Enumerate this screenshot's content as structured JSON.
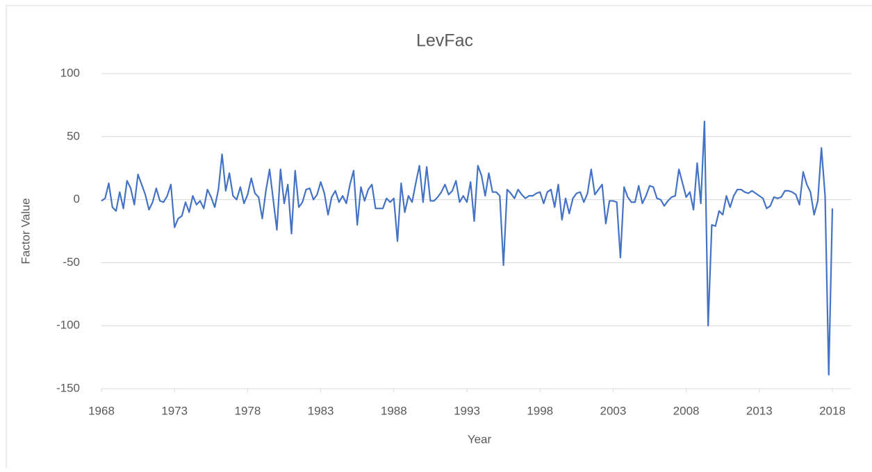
{
  "chart_data": {
    "type": "line",
    "title": "LevFac",
    "xlabel": "Year",
    "ylabel": "Factor Value",
    "x": [
      1968,
      1968.25,
      1968.5,
      1968.75,
      1969,
      1969.25,
      1969.5,
      1969.75,
      1970,
      1970.25,
      1970.5,
      1970.75,
      1971,
      1971.25,
      1971.5,
      1971.75,
      1972,
      1972.25,
      1972.5,
      1972.75,
      1973,
      1973.25,
      1973.5,
      1973.75,
      1974,
      1974.25,
      1974.5,
      1974.75,
      1975,
      1975.25,
      1975.5,
      1975.75,
      1976,
      1976.25,
      1976.5,
      1976.75,
      1977,
      1977.25,
      1977.5,
      1977.75,
      1978,
      1978.25,
      1978.5,
      1978.75,
      1979,
      1979.25,
      1979.5,
      1979.75,
      1980,
      1980.25,
      1980.5,
      1980.75,
      1981,
      1981.25,
      1981.5,
      1981.75,
      1982,
      1982.25,
      1982.5,
      1982.75,
      1983,
      1983.25,
      1983.5,
      1983.75,
      1984,
      1984.25,
      1984.5,
      1984.75,
      1985,
      1985.25,
      1985.5,
      1985.75,
      1986,
      1986.25,
      1986.5,
      1986.75,
      1987,
      1987.25,
      1987.5,
      1987.75,
      1988,
      1988.25,
      1988.5,
      1988.75,
      1989,
      1989.25,
      1989.5,
      1989.75,
      1990,
      1990.25,
      1990.5,
      1990.75,
      1991,
      1991.25,
      1991.5,
      1991.75,
      1992,
      1992.25,
      1992.5,
      1992.75,
      1993,
      1993.25,
      1993.5,
      1993.75,
      1994,
      1994.25,
      1994.5,
      1994.75,
      1995,
      1995.25,
      1995.5,
      1995.75,
      1996,
      1996.25,
      1996.5,
      1996.75,
      1997,
      1997.25,
      1997.5,
      1997.75,
      1998,
      1998.25,
      1998.5,
      1998.75,
      1999,
      1999.25,
      1999.5,
      1999.75,
      2000,
      2000.25,
      2000.5,
      2000.75,
      2001,
      2001.25,
      2001.5,
      2001.75,
      2002,
      2002.25,
      2002.5,
      2002.75,
      2003,
      2003.25,
      2003.5,
      2003.75,
      2004,
      2004.25,
      2004.5,
      2004.75,
      2005,
      2005.25,
      2005.5,
      2005.75,
      2006,
      2006.25,
      2006.5,
      2006.75,
      2007,
      2007.25,
      2007.5,
      2007.75,
      2008,
      2008.25,
      2008.5,
      2008.75,
      2009,
      2009.25,
      2009.5,
      2009.75,
      2010,
      2010.25,
      2010.5,
      2010.75,
      2011,
      2011.25,
      2011.5,
      2011.75,
      2012,
      2012.25,
      2012.5,
      2012.75,
      2013,
      2013.25,
      2013.5,
      2013.75,
      2014,
      2014.25,
      2014.5,
      2014.75,
      2015,
      2015.25,
      2015.5,
      2015.75,
      2016,
      2016.25,
      2016.5,
      2016.75,
      2017,
      2017.25,
      2017.5,
      2017.75,
      2018
    ],
    "series": [
      {
        "name": "LevFac",
        "color": "#4472c4",
        "values": [
          -1,
          1,
          13,
          -6,
          -9,
          6,
          -7,
          15,
          9,
          -4,
          20,
          12,
          4,
          -8,
          -2,
          9,
          -1,
          -2,
          3,
          12,
          -22,
          -15,
          -13,
          -2,
          -10,
          3,
          -4,
          -1,
          -7,
          8,
          2,
          -6,
          8,
          36,
          7,
          21,
          3,
          0,
          10,
          -3,
          4,
          17,
          5,
          2,
          -15,
          7,
          24,
          0,
          -24,
          24,
          -3,
          12,
          -27,
          23,
          -6,
          -2,
          8,
          9,
          0,
          4,
          14,
          5,
          -12,
          2,
          7,
          -2,
          3,
          -3,
          12,
          23,
          -20,
          10,
          -1,
          8,
          12,
          -7,
          -7,
          -7,
          1,
          -2,
          1,
          -33,
          13,
          -10,
          3,
          -2,
          13,
          27,
          -2,
          26,
          -1,
          -1,
          2,
          6,
          12,
          4,
          7,
          15,
          -2,
          3,
          -2,
          14,
          -17,
          27,
          19,
          3,
          21,
          6,
          6,
          3,
          -52,
          8,
          5,
          1,
          8,
          4,
          1,
          3,
          3,
          5,
          6,
          -3,
          6,
          8,
          -6,
          12,
          -16,
          1,
          -11,
          1,
          5,
          6,
          -2,
          5,
          24,
          4,
          8,
          12,
          -19,
          -1,
          -1,
          -2,
          -46,
          10,
          2,
          -2,
          -2,
          11,
          -3,
          3,
          11,
          10,
          1,
          0,
          -5,
          -1,
          2,
          3,
          24,
          13,
          2,
          6,
          -8,
          29,
          -3,
          62,
          -100,
          -20,
          -21,
          -9,
          -12,
          3,
          -6,
          3,
          8,
          8,
          6,
          5,
          7,
          5,
          3,
          1,
          -7,
          -5,
          2,
          1,
          2,
          7,
          7,
          6,
          4,
          -4,
          22,
          12,
          6,
          -12,
          -1,
          41,
          3,
          -139,
          -7
        ]
      }
    ],
    "xlim": [
      1968,
      2018
    ],
    "xticks": [
      1968,
      1973,
      1978,
      1983,
      1988,
      1993,
      1998,
      2003,
      2008,
      2013,
      2018
    ],
    "ylim": [
      -150,
      100
    ],
    "yticks": [
      -150,
      -100,
      -50,
      0,
      50,
      100
    ],
    "grid": true
  }
}
